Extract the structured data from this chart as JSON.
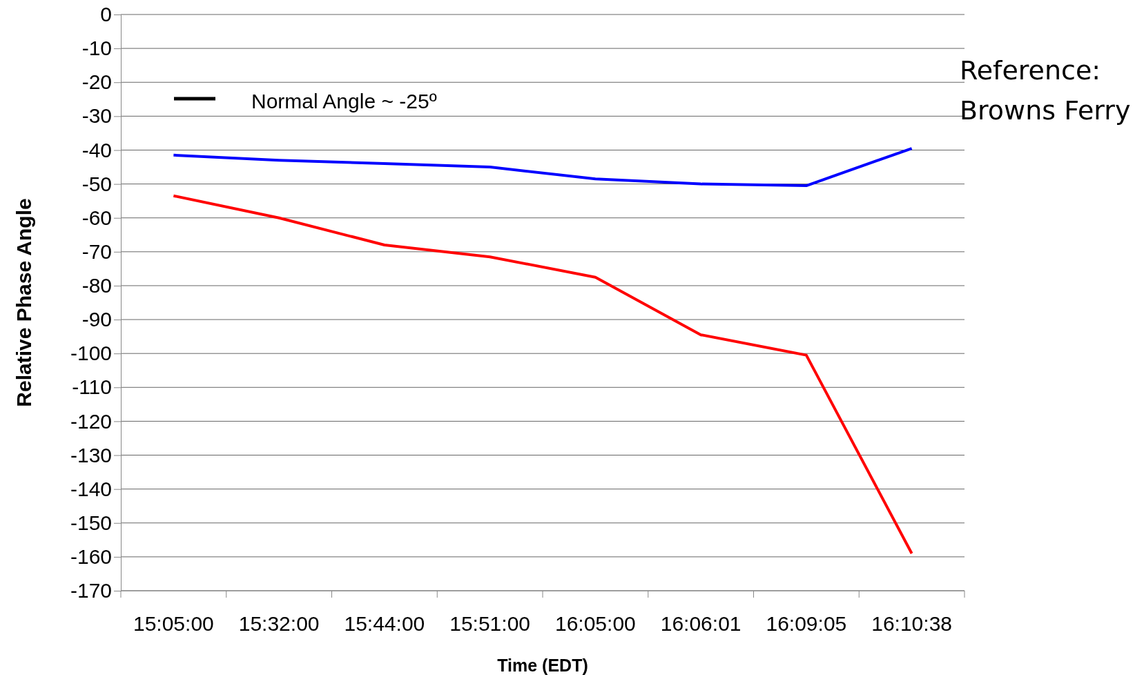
{
  "chart_data": {
    "type": "line",
    "xlabel": "Time (EDT)",
    "ylabel": "Relative Phase Angle",
    "categories": [
      "15:05:00",
      "15:32:00",
      "15:44:00",
      "15:51:00",
      "16:05:00",
      "16:06:01",
      "16:09:05",
      "16:10:38"
    ],
    "series": [
      {
        "color": "#0000ff",
        "values": [
          -41.5,
          -43,
          -44,
          -45,
          -48.5,
          -50,
          -50.5,
          -39.5
        ]
      },
      {
        "color": "#ff0000",
        "values": [
          -53.5,
          -60,
          -68,
          -71.5,
          -77.5,
          -94.5,
          -100.5,
          -159
        ]
      }
    ],
    "ylim": [
      -170,
      0
    ],
    "yticks": [
      0,
      -10,
      -20,
      -30,
      -40,
      -50,
      -60,
      -70,
      -80,
      -90,
      -100,
      -110,
      -120,
      -130,
      -140,
      -150,
      -160,
      -170
    ],
    "grid": "y",
    "line_style": "solid",
    "annotations": [
      "Normal Angle ~ -25º",
      "Reference:",
      "Browns Ferry"
    ]
  }
}
